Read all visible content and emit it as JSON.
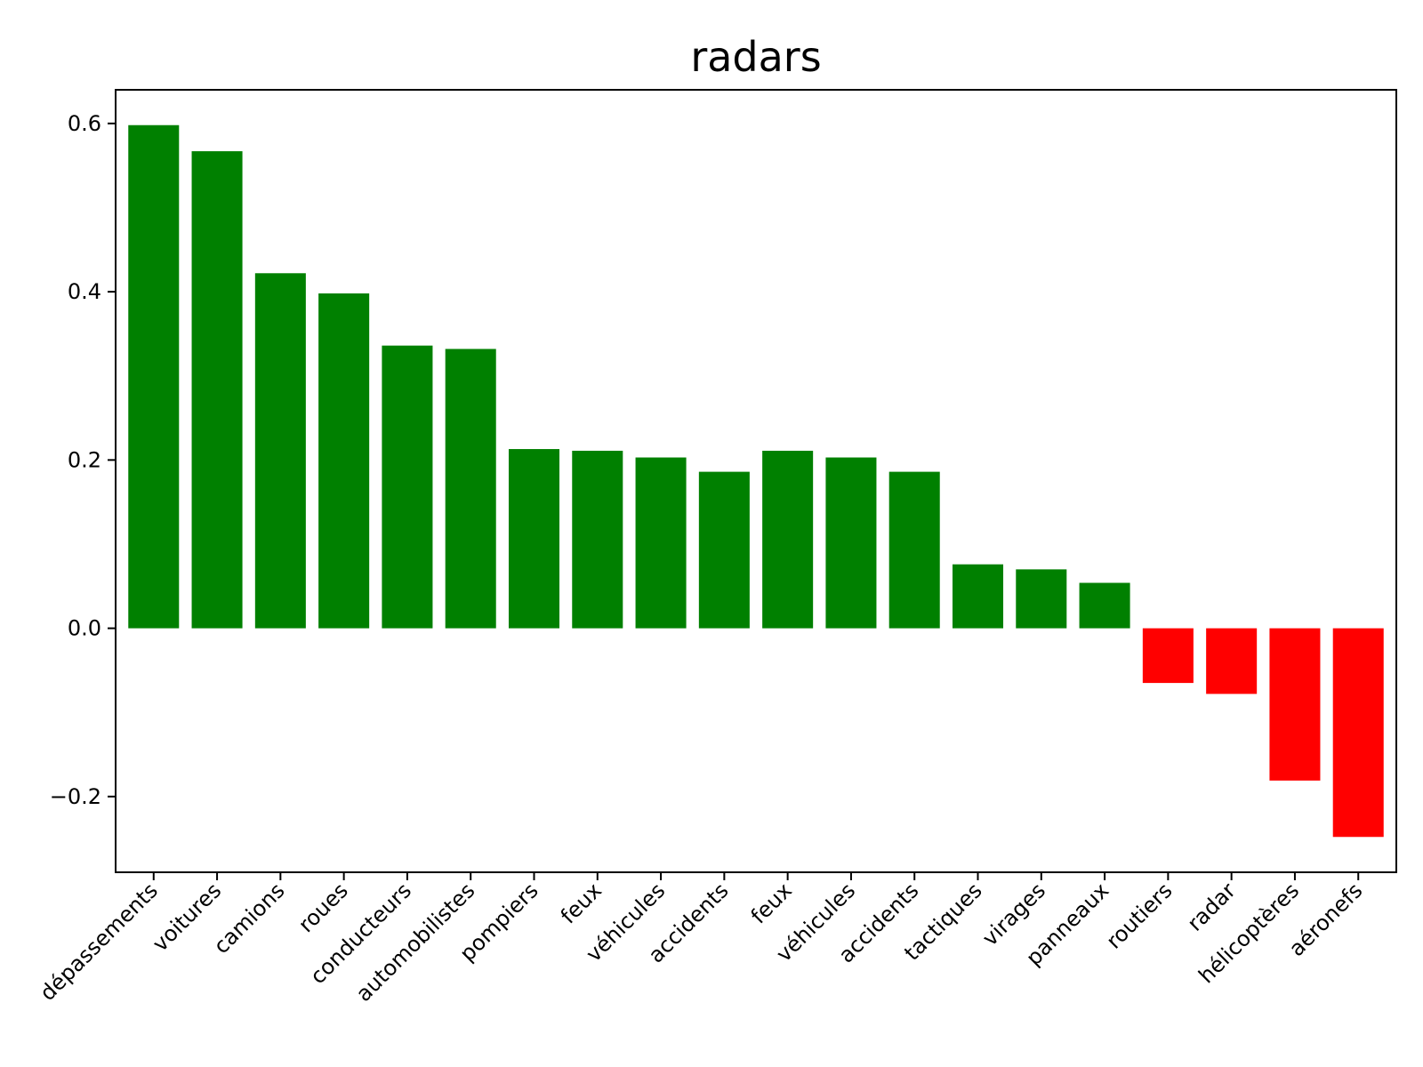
{
  "chart_data": {
    "type": "bar",
    "title": "radars",
    "xlabel": "",
    "ylabel": "",
    "ylim": [
      -0.29,
      0.64
    ],
    "yticks": [
      -0.2,
      0.0,
      0.2,
      0.4,
      0.6
    ],
    "ytick_labels": [
      "−0.2",
      "0.0",
      "0.2",
      "0.4",
      "0.6"
    ],
    "grid": false,
    "categories": [
      "dépassements",
      "voitures",
      "camions",
      "roues",
      "conducteurs",
      "automobilistes",
      "pompiers",
      "feux",
      "véhicules",
      "accidents",
      "feux",
      "véhicules",
      "accidents",
      "tactiques",
      "virages",
      "panneaux",
      "routiers",
      "radar",
      "hélicoptères",
      "aéronefs"
    ],
    "values": [
      0.598,
      0.567,
      0.422,
      0.398,
      0.336,
      0.332,
      0.213,
      0.211,
      0.203,
      0.186,
      0.211,
      0.203,
      0.186,
      0.076,
      0.07,
      0.054,
      -0.065,
      -0.078,
      -0.181,
      -0.248
    ],
    "colors": {
      "positive": "#008000",
      "negative": "#ff0000"
    }
  }
}
